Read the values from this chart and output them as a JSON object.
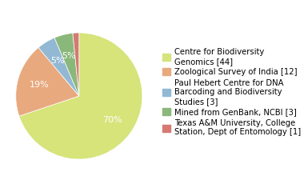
{
  "labels": [
    "Centre for Biodiversity\nGenomics [44]",
    "Zoological Survey of India [12]",
    "Paul Hebert Centre for DNA\nBarcoding and Biodiversity\nStudies [3]",
    "Mined from GenBank, NCBI [3]",
    "Texas A&M University, College\nStation, Dept of Entomology [1]"
  ],
  "values": [
    44,
    12,
    3,
    3,
    1
  ],
  "colors": [
    "#d6e47a",
    "#e8a97e",
    "#92b8d4",
    "#8ab87a",
    "#d47a72"
  ],
  "startangle": 90,
  "background_color": "#ffffff",
  "text_color": "#ffffff",
  "legend_fontsize": 7.2,
  "pct_fontsize": 8.0
}
